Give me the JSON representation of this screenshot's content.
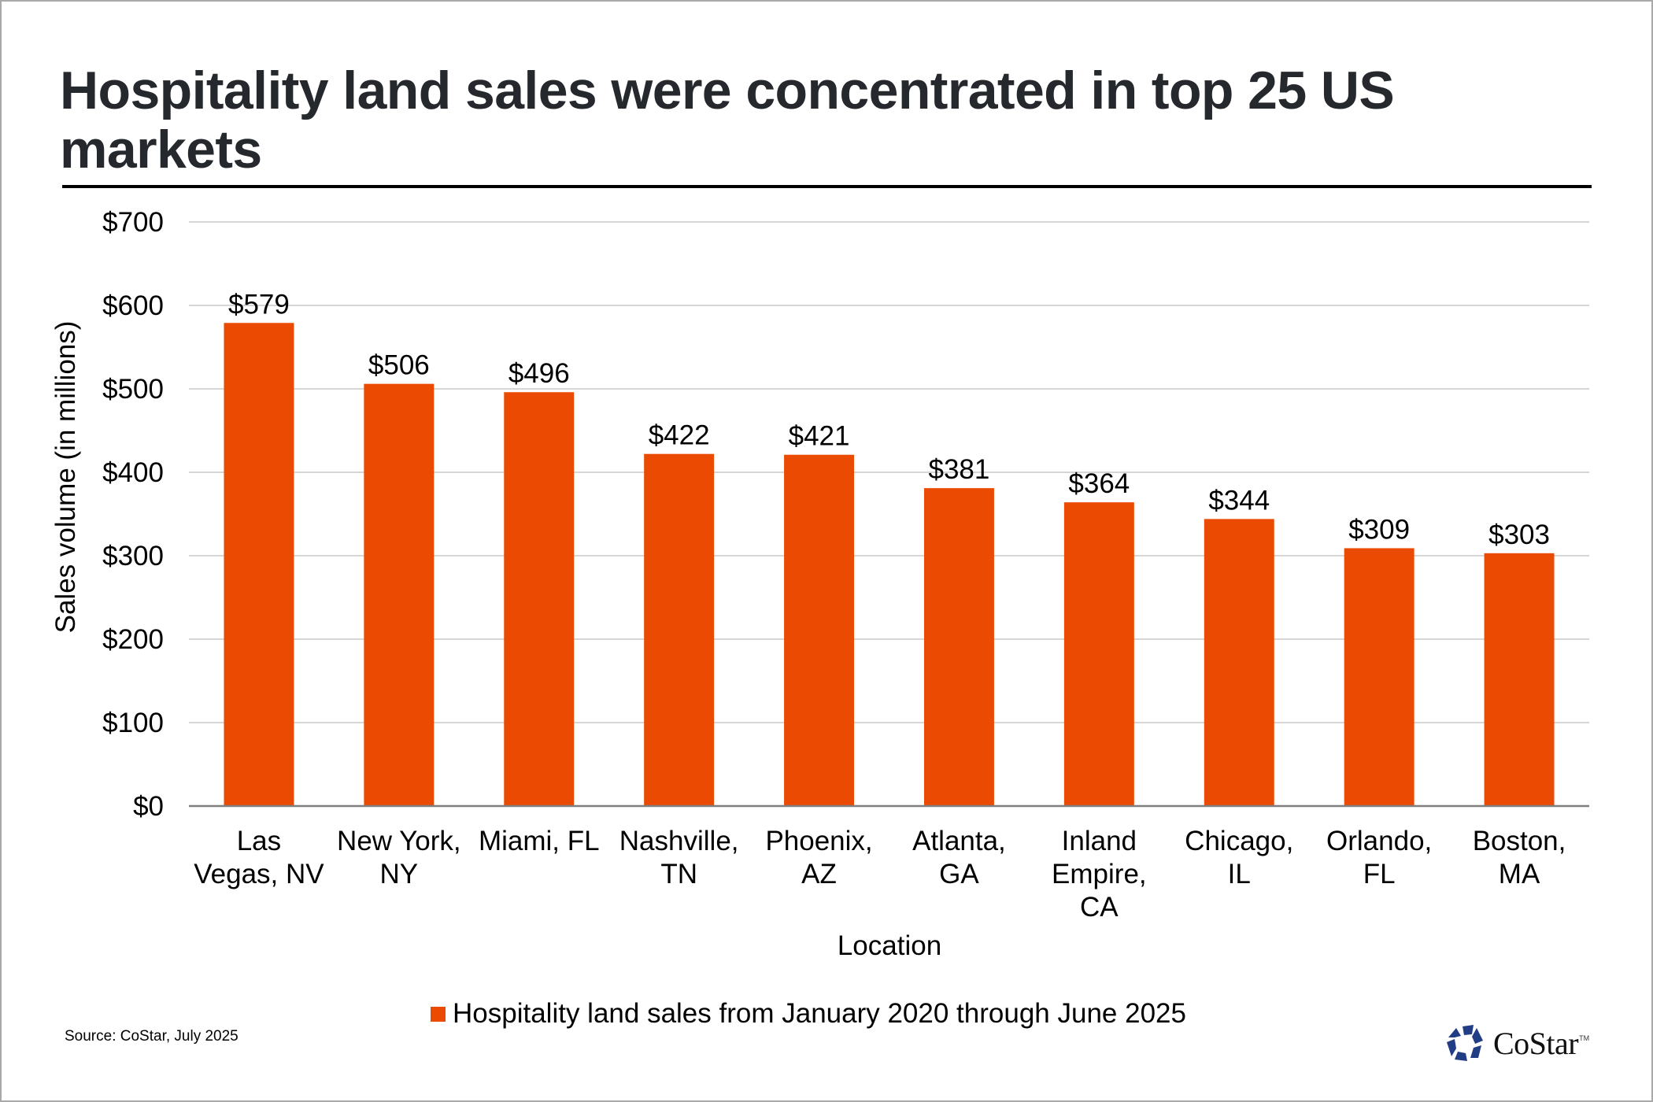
{
  "title_lines": [
    "Hospitality land sales were concentrated in top 25 US",
    "markets"
  ],
  "source": "Source: CoStar, July 2025",
  "logo": {
    "text": "CoStar",
    "trademark": "TM",
    "mark_color": "#203d85"
  },
  "legend": {
    "label": "Hospitality land sales from January 2020 through June 2025"
  },
  "colors": {
    "bar": "#eb4a03",
    "grid": "#c8c8c8",
    "axis": "#7f7f7f",
    "text": "#000000",
    "title": "#25282d"
  },
  "chart_data": {
    "type": "bar",
    "title": "Hospitality land sales were concentrated in top 25 US markets",
    "xlabel": "Location",
    "ylabel": "Sales volume (in millions)",
    "ylim": [
      0,
      700
    ],
    "yticks": [
      0,
      100,
      200,
      300,
      400,
      500,
      600,
      700
    ],
    "ytick_labels": [
      "$0",
      "$100",
      "$200",
      "$300",
      "$400",
      "$500",
      "$600",
      "$700"
    ],
    "grid": true,
    "legend_position": "bottom",
    "categories": [
      [
        "Las",
        "Vegas, NV"
      ],
      [
        "New York,",
        "NY"
      ],
      [
        "Miami, FL"
      ],
      [
        "Nashville,",
        "TN"
      ],
      [
        "Phoenix,",
        "AZ"
      ],
      [
        "Atlanta,",
        "GA"
      ],
      [
        "Inland",
        "Empire,",
        "CA"
      ],
      [
        "Chicago,",
        "IL"
      ],
      [
        "Orlando,",
        "FL"
      ],
      [
        "Boston,",
        "MA"
      ]
    ],
    "series": [
      {
        "name": "Hospitality land sales from January 2020 through June 2025",
        "values": [
          579,
          506,
          496,
          422,
          421,
          381,
          364,
          344,
          309,
          303
        ],
        "data_labels": [
          "$579",
          "$506",
          "$496",
          "$422",
          "$421",
          "$381",
          "$364",
          "$344",
          "$309",
          "$303"
        ]
      }
    ]
  }
}
